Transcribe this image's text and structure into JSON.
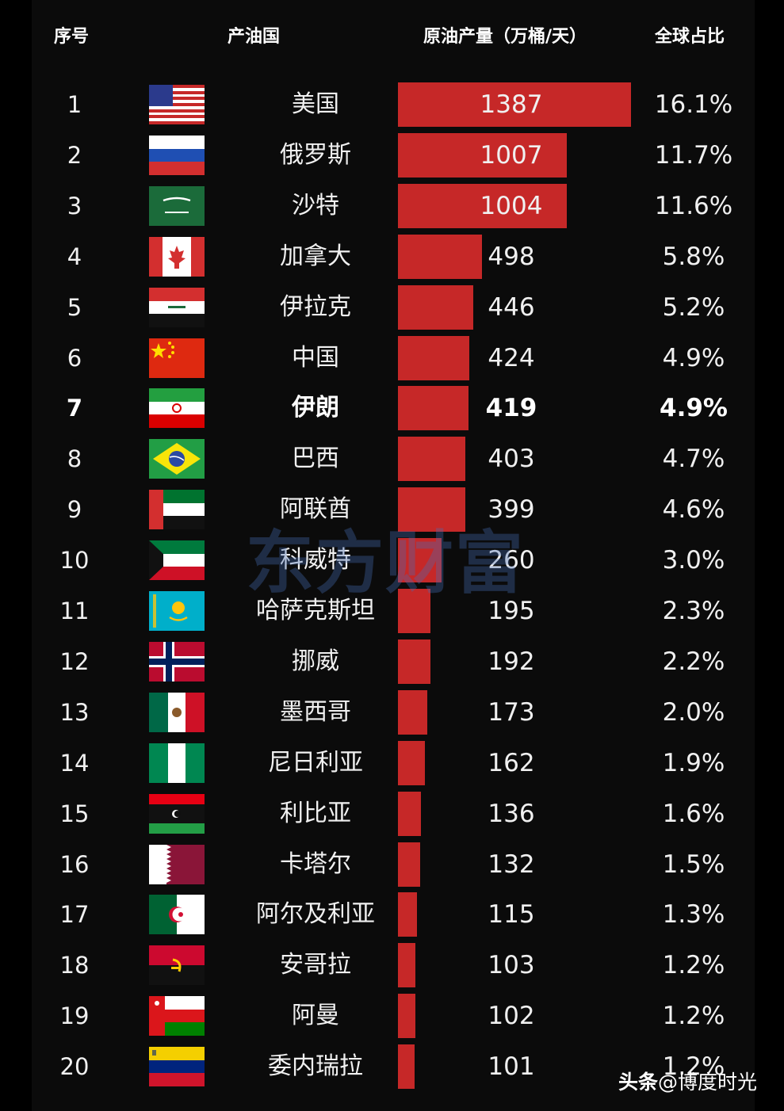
{
  "header": {
    "rank": "序号",
    "country": "产油国",
    "production": "原油产量（万桶/天）",
    "share": "全球占比"
  },
  "watermark": "东方财富",
  "credit": {
    "platform": "头条",
    "author": "@博度时光"
  },
  "chart_data": {
    "type": "bar",
    "orientation": "horizontal",
    "unit": "万桶/天",
    "xlim": [
      0,
      1387
    ],
    "highlight_rank": 7,
    "rows": [
      {
        "rank": "1",
        "country": "美国",
        "value": 1387,
        "value_label": "1387",
        "share": "16.1%",
        "flag": "flag-usa-icon"
      },
      {
        "rank": "2",
        "country": "俄罗斯",
        "value": 1007,
        "value_label": "1007",
        "share": "11.7%",
        "flag": "flag-russia-icon"
      },
      {
        "rank": "3",
        "country": "沙特",
        "value": 1004,
        "value_label": "1004",
        "share": "11.6%",
        "flag": "flag-saudi-arabia-icon"
      },
      {
        "rank": "4",
        "country": "加拿大",
        "value": 498,
        "value_label": "498",
        "share": "5.8%",
        "flag": "flag-canada-icon"
      },
      {
        "rank": "5",
        "country": "伊拉克",
        "value": 446,
        "value_label": "446",
        "share": "5.2%",
        "flag": "flag-iraq-icon"
      },
      {
        "rank": "6",
        "country": "中国",
        "value": 424,
        "value_label": "424",
        "share": "4.9%",
        "flag": "flag-china-icon"
      },
      {
        "rank": "7",
        "country": "伊朗",
        "value": 419,
        "value_label": "419",
        "share": "4.9%",
        "flag": "flag-iran-icon"
      },
      {
        "rank": "8",
        "country": "巴西",
        "value": 403,
        "value_label": "403",
        "share": "4.7%",
        "flag": "flag-brazil-icon"
      },
      {
        "rank": "9",
        "country": "阿联酋",
        "value": 399,
        "value_label": "399",
        "share": "4.6%",
        "flag": "flag-uae-icon"
      },
      {
        "rank": "10",
        "country": "科威特",
        "value": 260,
        "value_label": "260",
        "share": "3.0%",
        "flag": "flag-kuwait-icon"
      },
      {
        "rank": "11",
        "country": "哈萨克斯坦",
        "value": 195,
        "value_label": "195",
        "share": "2.3%",
        "flag": "flag-kazakhstan-icon"
      },
      {
        "rank": "12",
        "country": "挪威",
        "value": 192,
        "value_label": "192",
        "share": "2.2%",
        "flag": "flag-norway-icon"
      },
      {
        "rank": "13",
        "country": "墨西哥",
        "value": 173,
        "value_label": "173",
        "share": "2.0%",
        "flag": "flag-mexico-icon"
      },
      {
        "rank": "14",
        "country": "尼日利亚",
        "value": 162,
        "value_label": "162",
        "share": "1.9%",
        "flag": "flag-nigeria-icon"
      },
      {
        "rank": "15",
        "country": "利比亚",
        "value": 136,
        "value_label": "136",
        "share": "1.6%",
        "flag": "flag-libya-icon"
      },
      {
        "rank": "16",
        "country": "卡塔尔",
        "value": 132,
        "value_label": "132",
        "share": "1.5%",
        "flag": "flag-qatar-icon"
      },
      {
        "rank": "17",
        "country": "阿尔及利亚",
        "value": 115,
        "value_label": "115",
        "share": "1.3%",
        "flag": "flag-algeria-icon"
      },
      {
        "rank": "18",
        "country": "安哥拉",
        "value": 103,
        "value_label": "103",
        "share": "1.2%",
        "flag": "flag-angola-icon"
      },
      {
        "rank": "19",
        "country": "阿曼",
        "value": 102,
        "value_label": "102",
        "share": "1.2%",
        "flag": "flag-oman-icon"
      },
      {
        "rank": "20",
        "country": "委内瑞拉",
        "value": 101,
        "value_label": "101",
        "share": "1.2%",
        "flag": "flag-venezuela-icon"
      }
    ]
  }
}
